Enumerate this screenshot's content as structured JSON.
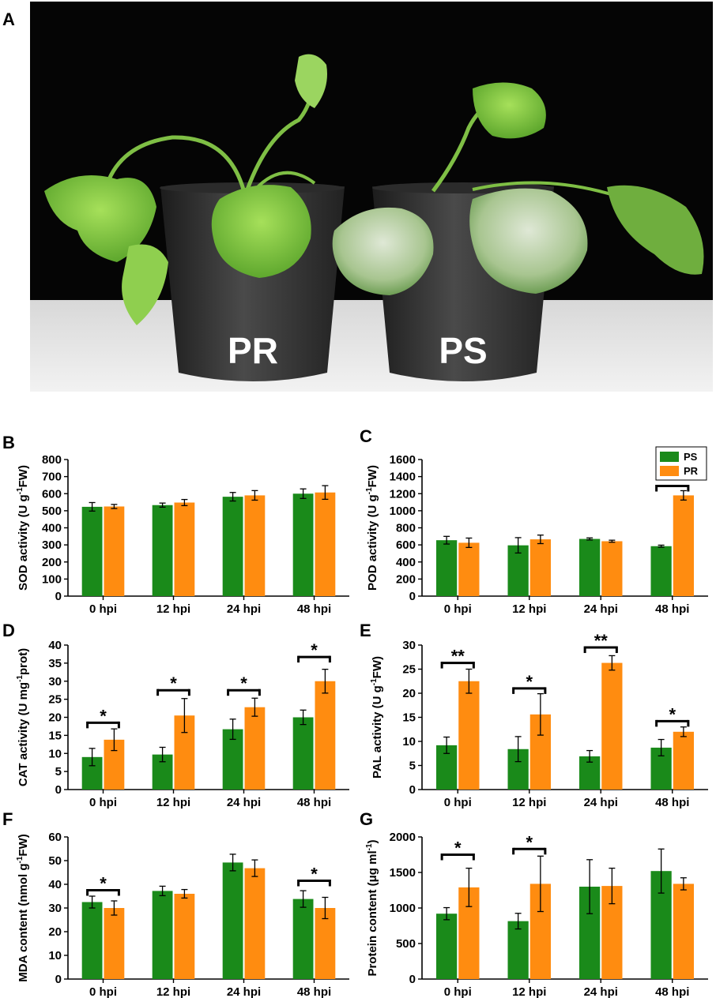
{
  "panels": {
    "A": "A",
    "B": "B",
    "C": "C",
    "D": "D",
    "E": "E",
    "F": "F",
    "G": "G"
  },
  "photo": {
    "left_pot_label": "PR",
    "right_pot_label": "PS"
  },
  "colors": {
    "PS": "#1a8a1a",
    "PR": "#ff8c10",
    "bracket": "#000000"
  },
  "legend": {
    "entries": [
      "PS",
      "PR"
    ]
  },
  "chart_data": [
    {
      "id": "B",
      "type": "bar",
      "ylabel_prefix": "SOD activity (U g",
      "ylabel_sup": "-1",
      "ylabel_suffix": "FW)",
      "categories": [
        "0 hpi",
        "12 hpi",
        "24 hpi",
        "48 hpi"
      ],
      "ylim": [
        0,
        800
      ],
      "yticks": [
        0,
        100,
        200,
        300,
        400,
        500,
        600,
        700,
        800
      ],
      "series": [
        {
          "name": "PS",
          "values": [
            523,
            533,
            582,
            600
          ],
          "errors": [
            25,
            12,
            25,
            28
          ]
        },
        {
          "name": "PR",
          "values": [
            525,
            548,
            590,
            607
          ],
          "errors": [
            12,
            18,
            28,
            40
          ]
        }
      ],
      "significance": []
    },
    {
      "id": "C",
      "type": "bar",
      "ylabel_prefix": "POD activity (U g",
      "ylabel_sup": "-1",
      "ylabel_suffix": "FW)",
      "categories": [
        "0 hpi",
        "12 hpi",
        "24 hpi",
        "48 hpi"
      ],
      "ylim": [
        0,
        1600
      ],
      "yticks": [
        0,
        200,
        400,
        600,
        800,
        1000,
        1200,
        1400,
        1600
      ],
      "series": [
        {
          "name": "PS",
          "values": [
            655,
            595,
            670,
            585
          ],
          "errors": [
            45,
            90,
            12,
            12
          ]
        },
        {
          "name": "PR",
          "values": [
            625,
            665,
            643,
            1180
          ],
          "errors": [
            55,
            50,
            12,
            55
          ]
        }
      ],
      "legend": true,
      "significance": [
        {
          "category": 3,
          "label": "**",
          "y": 1290
        }
      ]
    },
    {
      "id": "D",
      "type": "bar",
      "ylabel_prefix": "CAT activity (U mg",
      "ylabel_sup": "-1",
      "ylabel_suffix": "prot)",
      "categories": [
        "0 hpi",
        "12 hpi",
        "24 hpi",
        "48 hpi"
      ],
      "ylim": [
        0,
        40
      ],
      "yticks": [
        0,
        5,
        10,
        15,
        20,
        25,
        30,
        35,
        40
      ],
      "series": [
        {
          "name": "PS",
          "values": [
            9,
            9.7,
            16.7,
            20
          ],
          "errors": [
            2.4,
            2,
            2.8,
            2
          ]
        },
        {
          "name": "PR",
          "values": [
            13.8,
            20.5,
            22.8,
            30
          ],
          "errors": [
            3,
            4.7,
            2.5,
            3.3
          ]
        }
      ],
      "significance": [
        {
          "category": 0,
          "label": "*",
          "y": 18.5
        },
        {
          "category": 1,
          "label": "*",
          "y": 27.5
        },
        {
          "category": 2,
          "label": "*",
          "y": 27.5
        },
        {
          "category": 3,
          "label": "*",
          "y": 36.7
        }
      ]
    },
    {
      "id": "E",
      "type": "bar",
      "ylabel_prefix": "PAL activity (U g",
      "ylabel_sup": "-1",
      "ylabel_suffix": "FW)",
      "categories": [
        "0 hpi",
        "12 hpi",
        "24 hpi",
        "48 hpi"
      ],
      "ylim": [
        0,
        30
      ],
      "yticks": [
        0,
        5,
        10,
        15,
        20,
        25,
        30
      ],
      "series": [
        {
          "name": "PS",
          "values": [
            9.2,
            8.4,
            6.9,
            8.7
          ],
          "errors": [
            1.7,
            2.6,
            1.2,
            1.7
          ]
        },
        {
          "name": "PR",
          "values": [
            22.5,
            15.6,
            26.3,
            12
          ],
          "errors": [
            2.5,
            4.3,
            1.5,
            1
          ]
        }
      ],
      "significance": [
        {
          "category": 0,
          "label": "**",
          "y": 26.3
        },
        {
          "category": 1,
          "label": "*",
          "y": 21
        },
        {
          "category": 2,
          "label": "**",
          "y": 29.5
        },
        {
          "category": 3,
          "label": "*",
          "y": 14.2
        }
      ]
    },
    {
      "id": "F",
      "type": "bar",
      "ylabel_prefix": "MDA content (nmol g",
      "ylabel_sup": "-1",
      "ylabel_suffix": "FW)",
      "categories": [
        "0 hpi",
        "12 hpi",
        "24 hpi",
        "48 hpi"
      ],
      "ylim": [
        0,
        60
      ],
      "yticks": [
        0,
        10,
        20,
        30,
        40,
        50,
        60
      ],
      "series": [
        {
          "name": "PS",
          "values": [
            32.5,
            37.2,
            49.2,
            33.8
          ],
          "errors": [
            2.5,
            2,
            3.5,
            3.5
          ]
        },
        {
          "name": "PR",
          "values": [
            30,
            36,
            46.8,
            30
          ],
          "errors": [
            3,
            1.8,
            3.5,
            4.5
          ]
        }
      ],
      "significance": [
        {
          "category": 0,
          "label": "*",
          "y": 37.5
        },
        {
          "category": 3,
          "label": "*",
          "y": 41.5
        }
      ]
    },
    {
      "id": "G",
      "type": "bar",
      "ylabel_prefix": "Protein content (μg ml",
      "ylabel_sup": "-1",
      "ylabel_suffix": ")",
      "categories": [
        "0 hpi",
        "12 hpi",
        "24 hpi",
        "48 hpi"
      ],
      "ylim": [
        0,
        2000
      ],
      "yticks": [
        0,
        500,
        1000,
        1500,
        2000
      ],
      "series": [
        {
          "name": "PS",
          "values": [
            920,
            815,
            1300,
            1520
          ],
          "errors": [
            85,
            110,
            380,
            310
          ]
        },
        {
          "name": "PR",
          "values": [
            1290,
            1340,
            1310,
            1340
          ],
          "errors": [
            270,
            390,
            250,
            85
          ]
        }
      ],
      "significance": [
        {
          "category": 0,
          "label": "*",
          "y": 1750
        },
        {
          "category": 1,
          "label": "*",
          "y": 1830
        }
      ]
    }
  ]
}
